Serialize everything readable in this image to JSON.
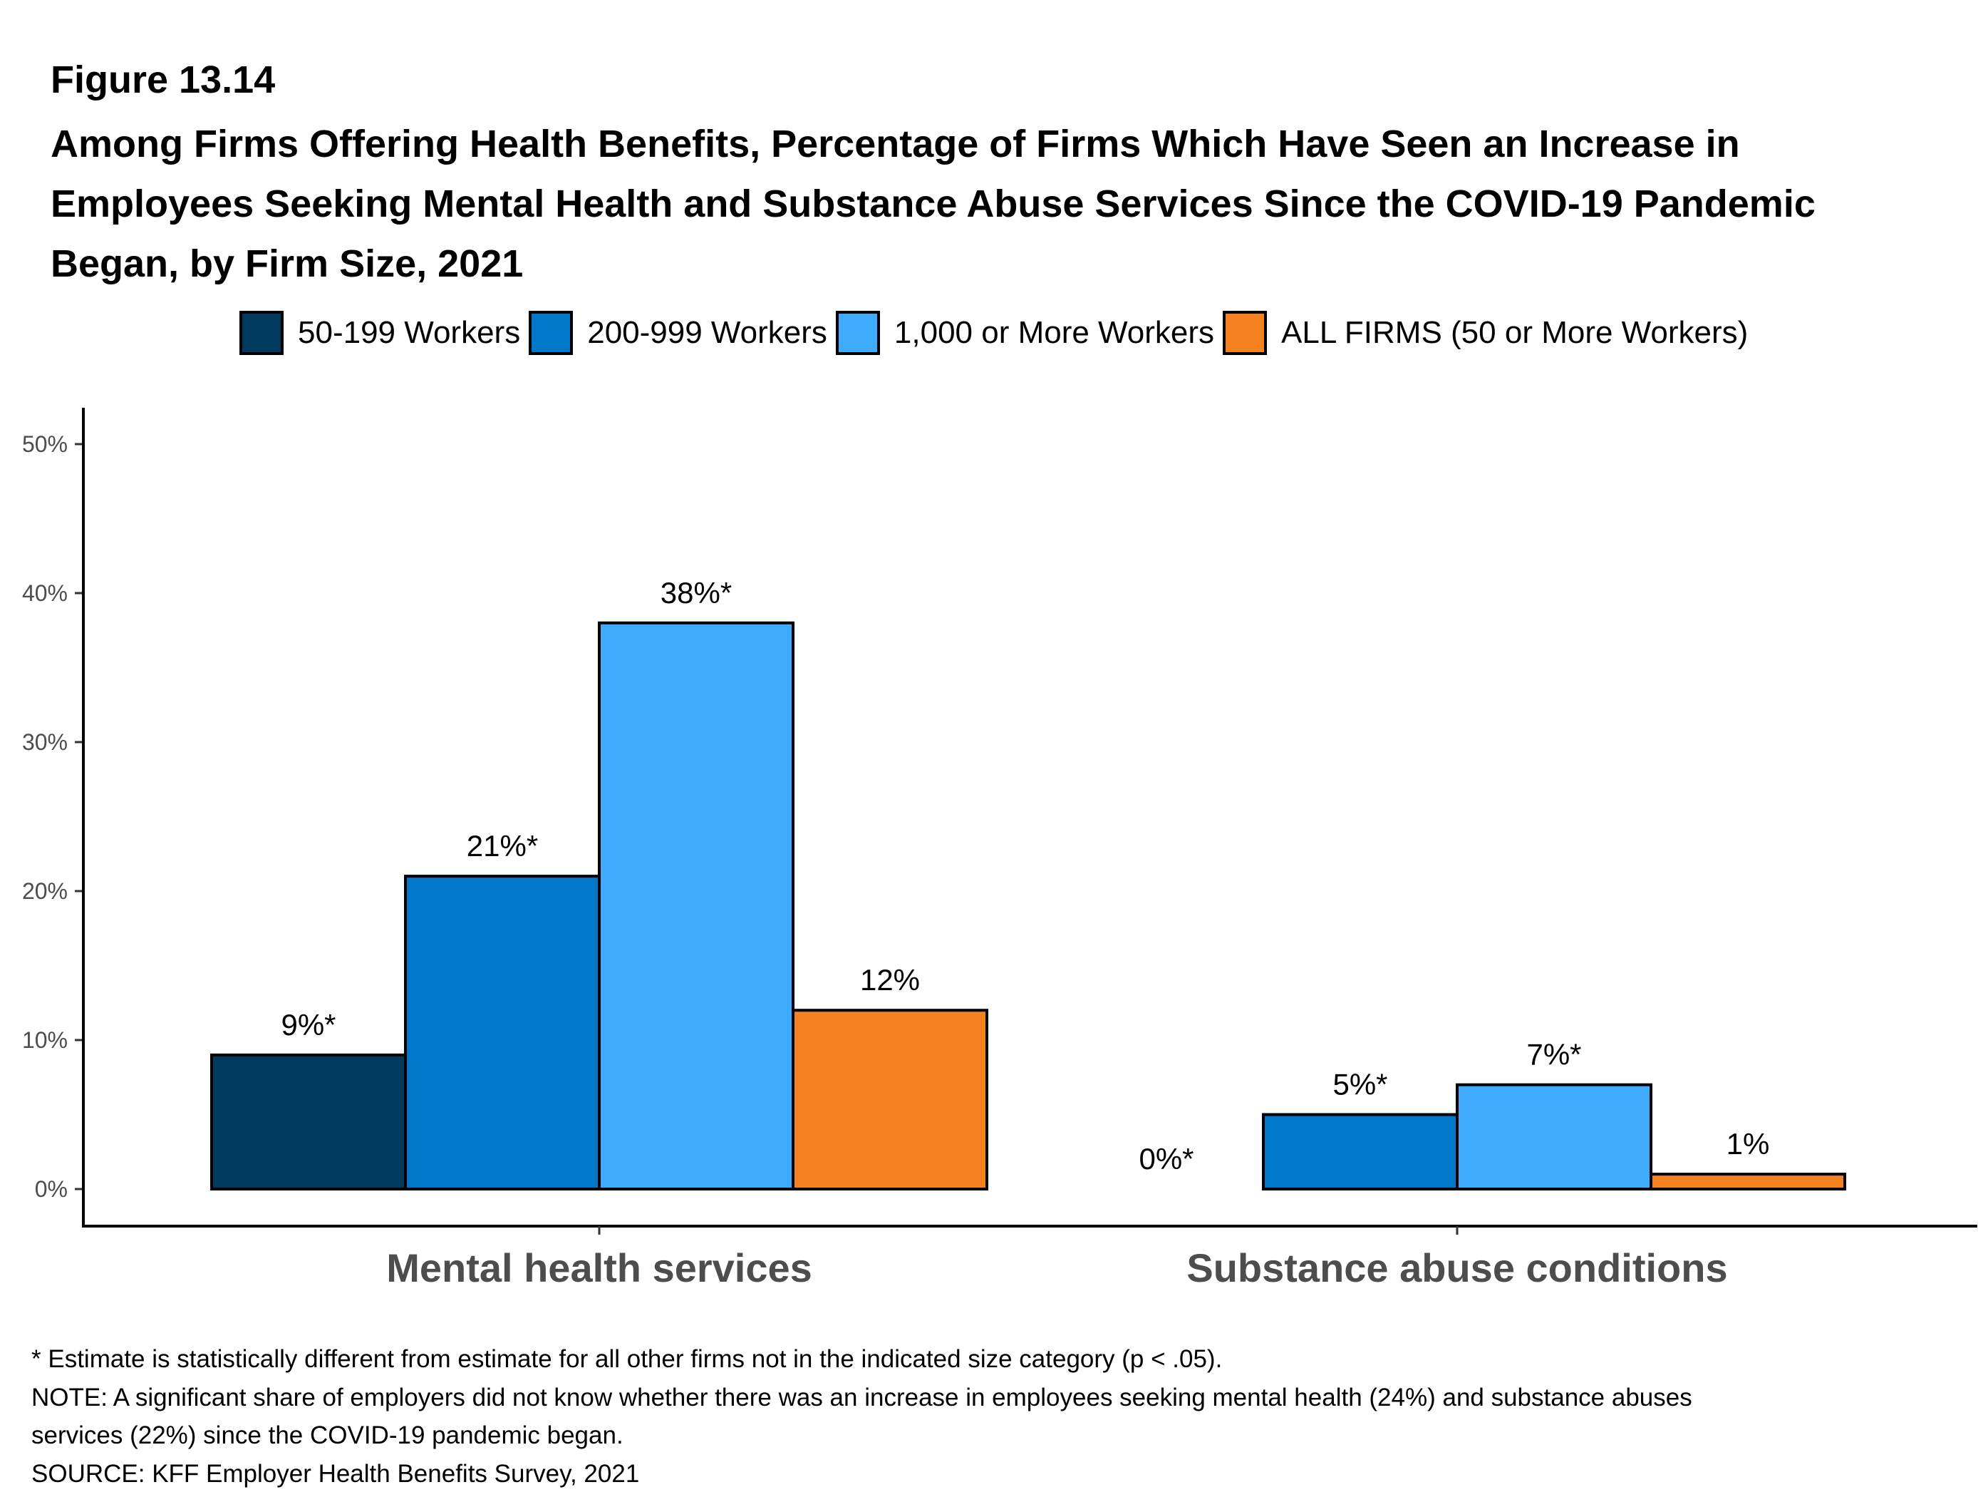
{
  "figure_label": "Figure 13.14",
  "title_lines": [
    "Among Firms Offering Health Benefits, Percentage of Firms Which Have Seen an Increase in",
    "Employees Seeking Mental Health and Substance Abuse Services Since the COVID-19 Pandemic",
    "Began, by Firm Size, 2021"
  ],
  "legend": [
    {
      "label": "50-199 Workers",
      "color": "#023a5f"
    },
    {
      "label": "200-999 Workers",
      "color": "#0077c8"
    },
    {
      "label": "1,000 or More Workers",
      "color": "#3eabfd"
    },
    {
      "label": "ALL FIRMS (50 or More Workers)",
      "color": "#f58220"
    }
  ],
  "footer": [
    "* Estimate is statistically different from estimate for all other firms not in the indicated size category (p < .05).",
    "NOTE: A significant share of employers did not know whether there was an increase in employees seeking mental health (24%) and substance abuses",
    "services (22%) since the COVID-19 pandemic began.",
    "SOURCE: KFF Employer Health Benefits Survey, 2021"
  ],
  "chart_data": {
    "type": "bar",
    "title": "Among Firms Offering Health Benefits, Percentage of Firms Which Have Seen an Increase in Employees Seeking Mental Health and Substance Abuse Services Since the COVID-19 Pandemic Began, by Firm Size, 2021",
    "xlabel": "",
    "ylabel": "",
    "categories": [
      "Mental health services",
      "Substance abuse conditions"
    ],
    "series": [
      {
        "name": "50-199 Workers",
        "color": "#023a5f",
        "values": [
          9,
          0
        ],
        "labels": [
          "9%*",
          "0%*"
        ]
      },
      {
        "name": "200-999 Workers",
        "color": "#0077c8",
        "values": [
          21,
          5
        ],
        "labels": [
          "21%*",
          "5%*"
        ]
      },
      {
        "name": "1,000 or More Workers",
        "color": "#3eabfd",
        "values": [
          38,
          7
        ],
        "labels": [
          "38%*",
          "7%*"
        ]
      },
      {
        "name": "ALL FIRMS (50 or More Workers)",
        "color": "#f58220",
        "values": [
          12,
          1
        ],
        "labels": [
          "12%",
          "1%"
        ]
      }
    ],
    "ylim": [
      0,
      50
    ],
    "yticks": [
      0,
      10,
      20,
      30,
      40,
      50
    ],
    "ytick_labels": [
      "0%",
      "10%",
      "20%",
      "30%",
      "40%",
      "50%"
    ],
    "grid": false,
    "legend_position": "top"
  }
}
